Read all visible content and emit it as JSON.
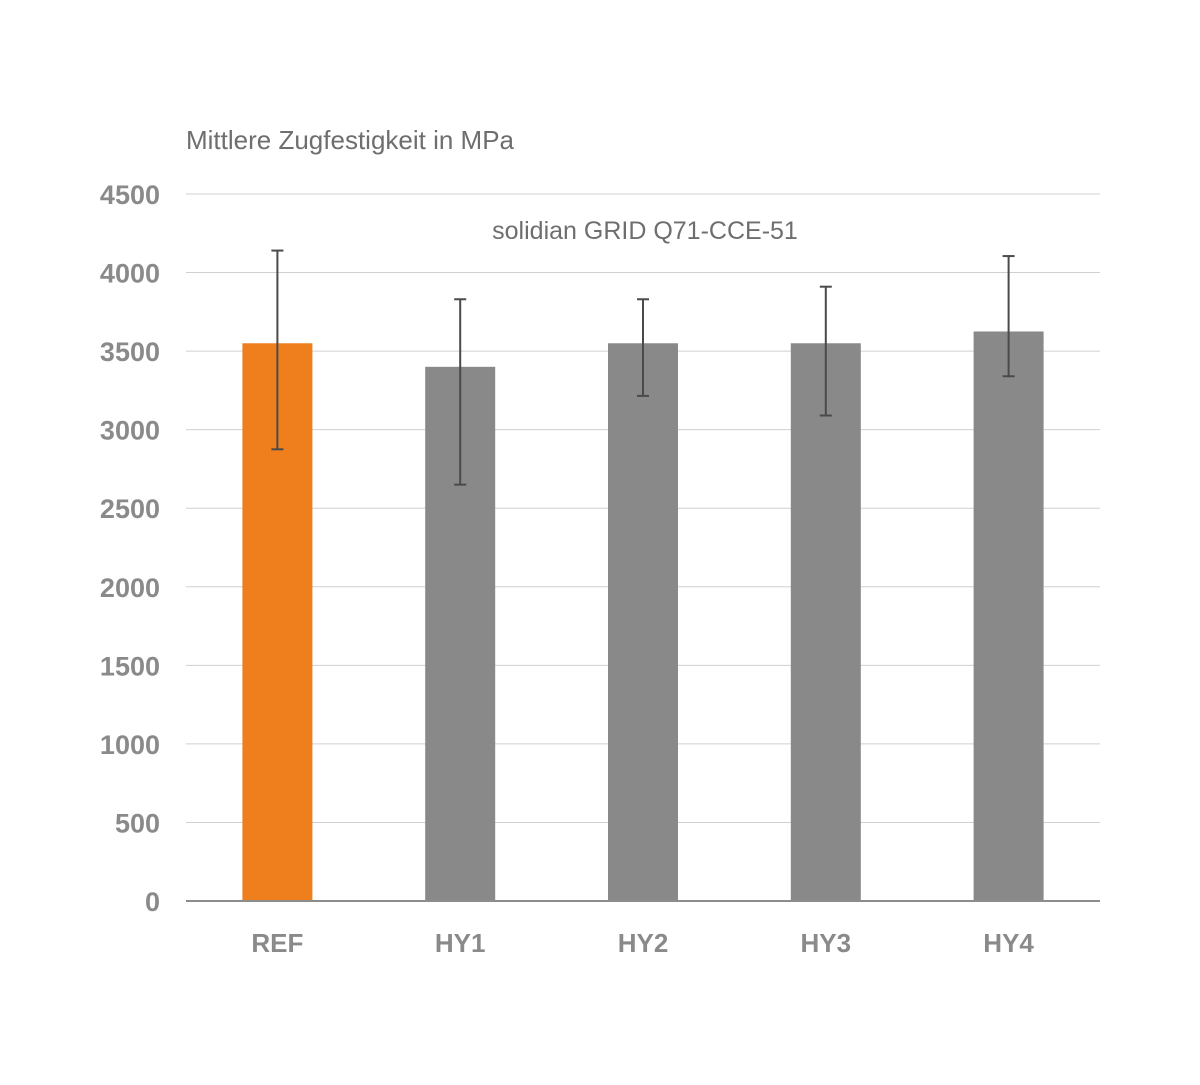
{
  "chart_data": {
    "type": "bar",
    "ylabel": "Mittlere Zugfestigkeit in MPa",
    "subtitle": "solidian GRID Q71-CCE-51",
    "xlabel": "",
    "categories": [
      "REF",
      "HY1",
      "HY2",
      "HY3",
      "HY4"
    ],
    "values": [
      3550,
      3400,
      3550,
      3550,
      3625
    ],
    "error_low": [
      2875,
      2650,
      3215,
      3090,
      3340
    ],
    "error_high": [
      4140,
      3830,
      3830,
      3910,
      4105
    ],
    "ylim": [
      0,
      4500
    ],
    "yticks": [
      0,
      500,
      1000,
      1500,
      2000,
      2500,
      3000,
      3500,
      4000,
      4500
    ],
    "grid": true,
    "colors": {
      "highlight": "#ee7f1c",
      "bar": "#898989",
      "error_bar": "#4a4a4a",
      "grid": "#d0d0d0",
      "axis": "#8c8c8c"
    },
    "highlight_index": 0
  }
}
